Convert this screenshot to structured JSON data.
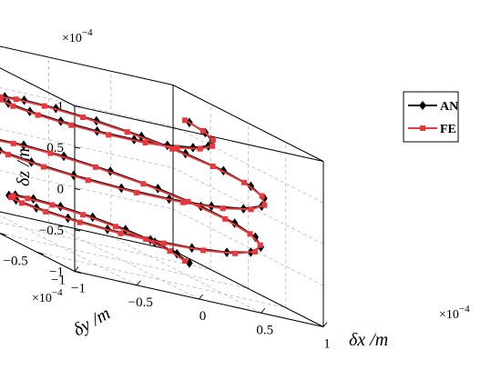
{
  "chart_data": {
    "type": "line3d",
    "title": "",
    "xlabel": "δx /m",
    "ylabel": "δy /m",
    "zlabel": "δz /m",
    "x_exponent": "×10^-4",
    "y_exponent": "×10^-4",
    "z_exponent": "×10^-4",
    "xlim": [
      -1,
      1
    ],
    "ylim": [
      -1,
      1
    ],
    "zlim": [
      -1,
      1
    ],
    "x_ticks": [
      "-1",
      "-0.5",
      "0",
      "0.5",
      "1"
    ],
    "y_ticks": [
      "-1",
      "-0.5",
      "0",
      "0.5",
      "1"
    ],
    "z_ticks": [
      "-1",
      "-0.5",
      "0",
      "0.5",
      "1"
    ],
    "grid": true,
    "legend_position": "right",
    "helix": {
      "turns": 3,
      "points_per_series": 57,
      "radius_profile": "sqrt(1 - z^2)",
      "z_from": -0.85,
      "z_to": 0.85
    },
    "series": [
      {
        "name": "AN",
        "color": "#000000",
        "marker": "diamond",
        "phase_deg": 0
      },
      {
        "name": "FE",
        "color": "#e8383d",
        "marker": "square",
        "phase_deg": 6
      }
    ]
  }
}
